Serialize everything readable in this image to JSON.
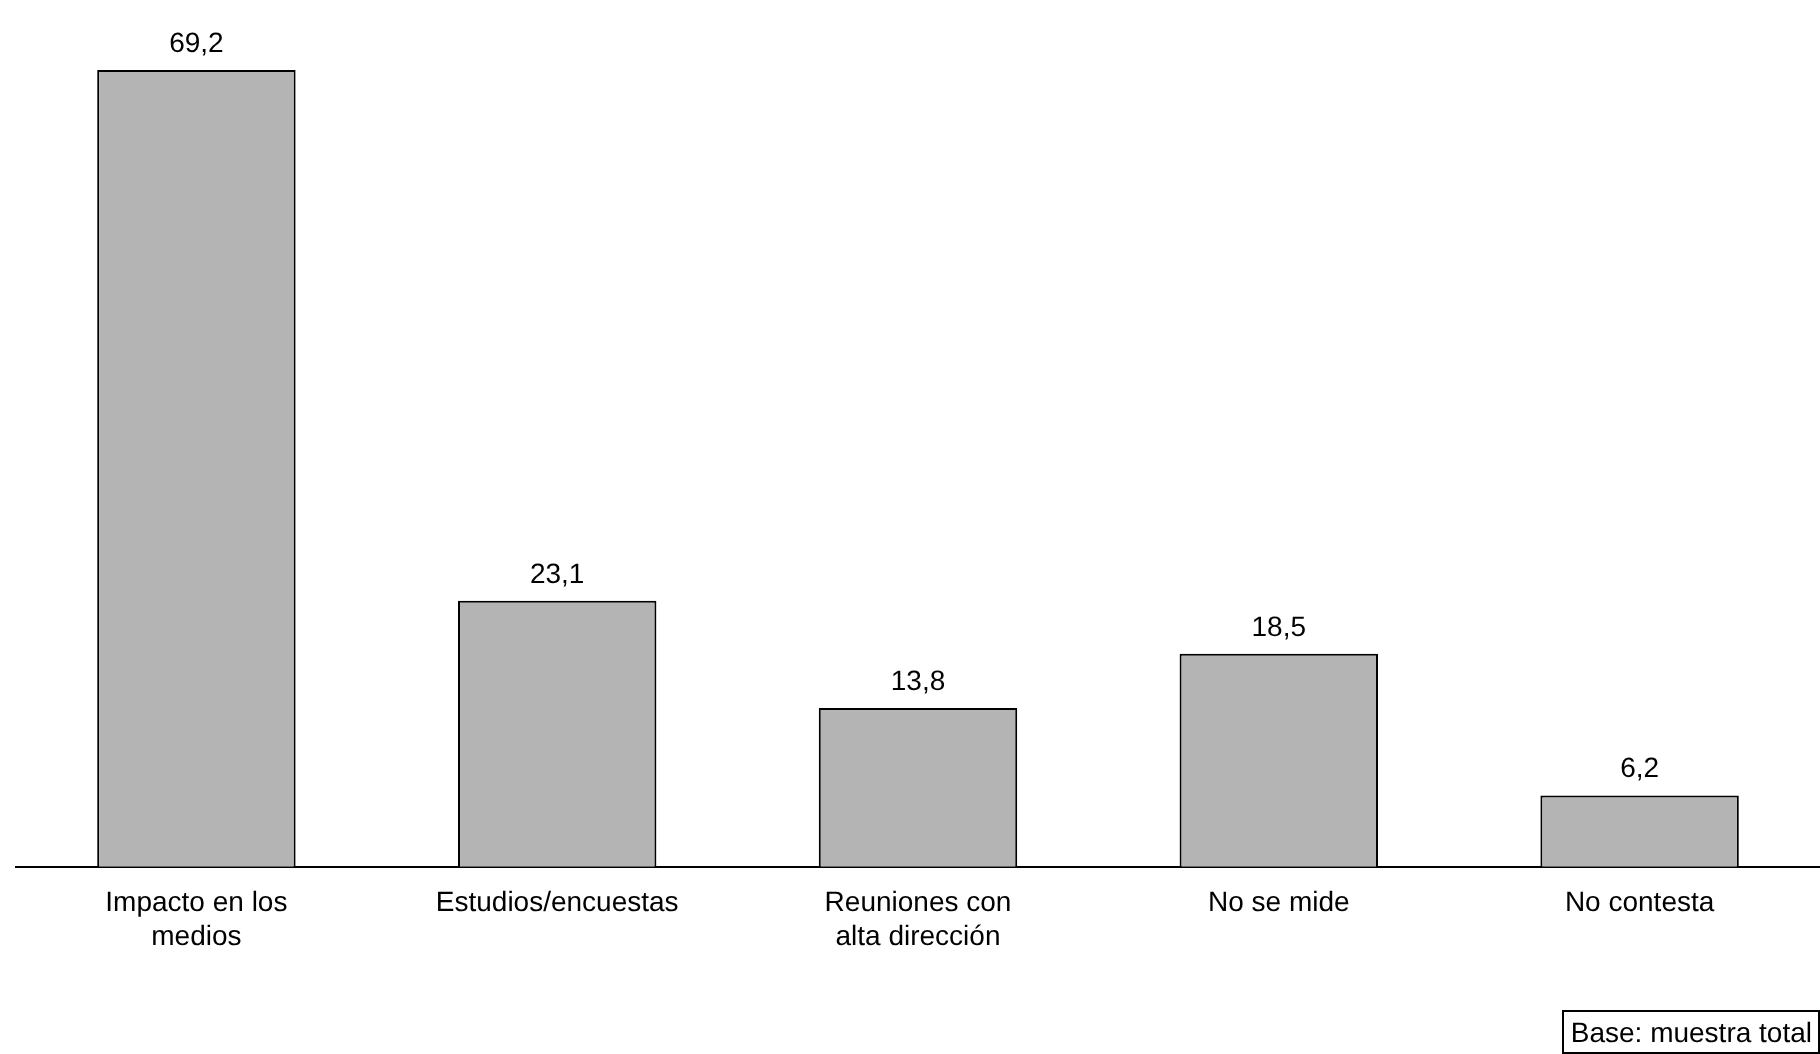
{
  "chart_data": {
    "type": "bar",
    "categories": [
      "Impacto en los medios",
      "Estudios/encuestas",
      "Reuniones con alta dirección",
      "No se mide",
      "No contesta"
    ],
    "values": [
      69.2,
      23.1,
      13.8,
      18.5,
      6.2
    ],
    "value_labels": [
      "69,2",
      "23,1",
      "13,8",
      "18,5",
      "6,2"
    ],
    "color": "#b4b4b4",
    "grid": false,
    "legend": false,
    "annotations": [
      "Base: muestra total"
    ]
  }
}
